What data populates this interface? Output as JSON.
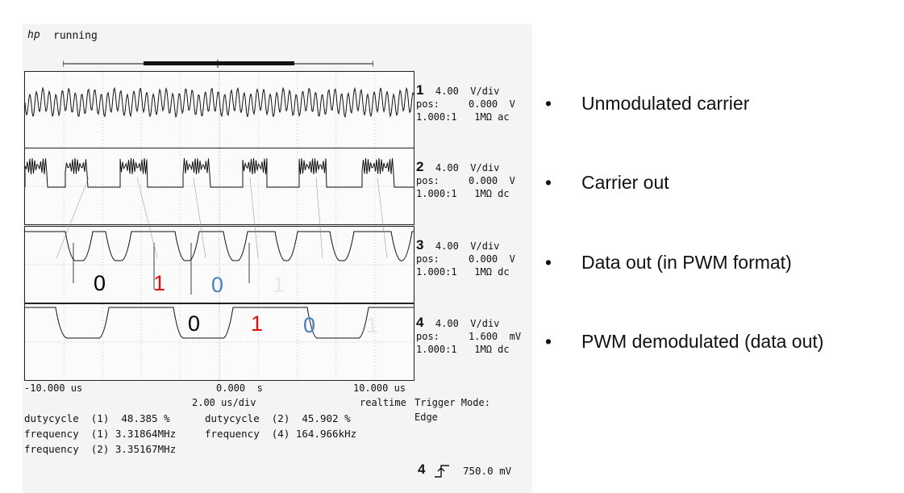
{
  "header": {
    "brand": "hp",
    "status": "running"
  },
  "channels": [
    {
      "num": "1",
      "scale": "4.00  V/div",
      "pos": "pos:     0.000  V",
      "probe": "1.000:1   1MΩ ac"
    },
    {
      "num": "2",
      "scale": "4.00  V/div",
      "pos": "pos:     0.000  V",
      "probe": "1.000:1   1MΩ dc"
    },
    {
      "num": "3",
      "scale": "4.00  V/div",
      "pos": "pos:     0.000  V",
      "probe": "1.000:1   1MΩ dc"
    },
    {
      "num": "4",
      "scale": "4.00  V/div",
      "pos": "pos:     1.600  mV",
      "probe": "1.000:1   1MΩ dc"
    }
  ],
  "bits_trace3": [
    {
      "text": "0",
      "color": "#000000"
    },
    {
      "text": "1",
      "color": "#e01010"
    },
    {
      "text": "0",
      "color": "#4a7fc0"
    },
    {
      "text": "1",
      "color": "#e8e8e8"
    }
  ],
  "bits_trace4": [
    {
      "text": "0",
      "color": "#000000"
    },
    {
      "text": "1",
      "color": "#e01010"
    },
    {
      "text": "0",
      "color": "#4a7fc0"
    },
    {
      "text": "1",
      "color": "#e8e8e8"
    }
  ],
  "timebase": {
    "left": "-10.000 us",
    "center": "0.000  s",
    "right": "10.000 us",
    "per_div": "2.00 us/div",
    "mode": "realtime",
    "trigger_mode_label": "Trigger Mode:",
    "trigger_mode_value": "Edge"
  },
  "measurements": {
    "line1_a": "dutycycle  (1)  48.385 %",
    "line1_b": "dutycycle  (2)  45.902 %",
    "line2_a": "frequency  (1) 3.31864MHz",
    "line2_b": "frequency  (4) 164.966kHz",
    "line3_a": "frequency  (2) 3.35167MHz"
  },
  "trigger": {
    "channel": "4",
    "level": "750.0 mV",
    "slope_icon": "rising-edge-icon"
  },
  "bullets": [
    "Unmodulated carrier",
    "Carrier out",
    "Data out (in PWM format)",
    "PWM demodulated (data out)"
  ]
}
